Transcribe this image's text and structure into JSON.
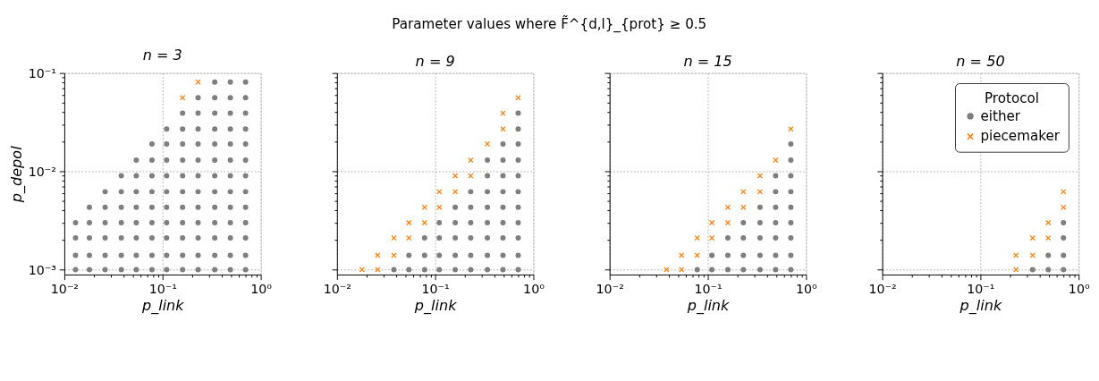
{
  "chart_data": [
    {
      "type": "scatter",
      "title": "n = 3",
      "annotations": [
        "Parameter values where F̃^{d,l}_{prot} ≥ 0.5"
      ],
      "xlabel": "p_link",
      "ylabel": "p_depol",
      "xlim": [
        0.01,
        1
      ],
      "ylim": [
        0.00089,
        0.1
      ],
      "grid": true,
      "log": "xy",
      "xticks": [
        {
          "value": 0.01,
          "label": "10⁻²"
        },
        {
          "value": 0.02,
          "label": null
        },
        {
          "value": 0.03,
          "label": null
        },
        {
          "value": 0.04,
          "label": null
        },
        {
          "value": 0.05,
          "label": null
        },
        {
          "value": 0.06,
          "label": null
        },
        {
          "value": 0.07,
          "label": null
        },
        {
          "value": 0.08,
          "label": null
        },
        {
          "value": 0.09,
          "label": null
        },
        {
          "value": 0.1,
          "label": "10⁻¹"
        },
        {
          "value": 0.2,
          "label": null
        },
        {
          "value": 0.3,
          "label": null
        },
        {
          "value": 0.4,
          "label": null
        },
        {
          "value": 0.5,
          "label": null
        },
        {
          "value": 0.6,
          "label": null
        },
        {
          "value": 0.7,
          "label": null
        },
        {
          "value": 0.8,
          "label": null
        },
        {
          "value": 0.9,
          "label": null
        },
        {
          "value": 1,
          "label": "10⁰"
        }
      ],
      "yticks": [
        {
          "value": 0.001,
          "label": "10⁻³"
        },
        {
          "value": 0.002,
          "label": null
        },
        {
          "value": 0.003,
          "label": null
        },
        {
          "value": 0.004,
          "label": null
        },
        {
          "value": 0.005,
          "label": null
        },
        {
          "value": 0.006,
          "label": null
        },
        {
          "value": 0.007,
          "label": null
        },
        {
          "value": 0.008,
          "label": null
        },
        {
          "value": 0.009,
          "label": null
        },
        {
          "value": 0.01,
          "label": "10⁻²"
        },
        {
          "value": 0.02,
          "label": null
        },
        {
          "value": 0.03,
          "label": null
        },
        {
          "value": 0.04,
          "label": null
        },
        {
          "value": 0.05,
          "label": null
        },
        {
          "value": 0.06,
          "label": null
        },
        {
          "value": 0.07,
          "label": null
        },
        {
          "value": 0.08,
          "label": null
        },
        {
          "value": 0.09,
          "label": null
        },
        {
          "value": 0.1,
          "label": "10⁻¹"
        }
      ],
      "series": [
        {
          "color": "#7f7f7f",
          "marker": "circle",
          "x": [
            0.013,
            0.018,
            0.026,
            0.038,
            0.054,
            0.078,
            0.11,
            0.16,
            0.23,
            0.34,
            0.49,
            0.7,
            0.013,
            0.018,
            0.026,
            0.038,
            0.054,
            0.078,
            0.11,
            0.16,
            0.23,
            0.34,
            0.49,
            0.7,
            0.013,
            0.018,
            0.026,
            0.038,
            0.054,
            0.078,
            0.11,
            0.16,
            0.23,
            0.34,
            0.49,
            0.7,
            0.013,
            0.018,
            0.026,
            0.038,
            0.054,
            0.078,
            0.11,
            0.16,
            0.23,
            0.34,
            0.49,
            0.7,
            0.018,
            0.026,
            0.038,
            0.054,
            0.078,
            0.11,
            0.16,
            0.23,
            0.34,
            0.49,
            0.7,
            0.026,
            0.038,
            0.054,
            0.078,
            0.11,
            0.16,
            0.23,
            0.34,
            0.49,
            0.7,
            0.038,
            0.054,
            0.078,
            0.11,
            0.16,
            0.23,
            0.34,
            0.49,
            0.7,
            0.054,
            0.078,
            0.11,
            0.16,
            0.23,
            0.34,
            0.49,
            0.7,
            0.078,
            0.11,
            0.16,
            0.23,
            0.34,
            0.49,
            0.7,
            0.11,
            0.16,
            0.23,
            0.34,
            0.49,
            0.7,
            0.16,
            0.23,
            0.34,
            0.49,
            0.7,
            0.23,
            0.34,
            0.49,
            0.7,
            0.34,
            0.49,
            0.7
          ],
          "values": [
            0.001,
            0.001,
            0.001,
            0.001,
            0.001,
            0.001,
            0.001,
            0.001,
            0.001,
            0.001,
            0.001,
            0.001,
            0.0014,
            0.0014,
            0.0014,
            0.0014,
            0.0014,
            0.0014,
            0.0014,
            0.0014,
            0.0014,
            0.0014,
            0.0014,
            0.0014,
            0.0021,
            0.0021,
            0.0021,
            0.0021,
            0.0021,
            0.0021,
            0.0021,
            0.0021,
            0.0021,
            0.0021,
            0.0021,
            0.0021,
            0.003,
            0.003,
            0.003,
            0.003,
            0.003,
            0.003,
            0.003,
            0.003,
            0.003,
            0.003,
            0.003,
            0.003,
            0.0043,
            0.0043,
            0.0043,
            0.0043,
            0.0043,
            0.0043,
            0.0043,
            0.0043,
            0.0043,
            0.0043,
            0.0043,
            0.0062,
            0.0062,
            0.0062,
            0.0062,
            0.0062,
            0.0062,
            0.0062,
            0.0062,
            0.0062,
            0.0062,
            0.009,
            0.009,
            0.009,
            0.009,
            0.009,
            0.009,
            0.009,
            0.009,
            0.009,
            0.013,
            0.013,
            0.013,
            0.013,
            0.013,
            0.013,
            0.013,
            0.013,
            0.019,
            0.019,
            0.019,
            0.019,
            0.019,
            0.019,
            0.019,
            0.027,
            0.027,
            0.027,
            0.027,
            0.027,
            0.027,
            0.039,
            0.039,
            0.039,
            0.039,
            0.039,
            0.056,
            0.056,
            0.056,
            0.056,
            0.081,
            0.081,
            0.081
          ]
        },
        {
          "color": "#ff7f0e",
          "marker": "cross",
          "x": [
            0.16,
            0.23
          ],
          "values": [
            0.056,
            0.081
          ]
        }
      ]
    },
    {
      "type": "scatter",
      "title": "n = 9",
      "xlabel": "p_link",
      "xlim": [
        0.01,
        1
      ],
      "ylim": [
        0.00089,
        0.1
      ],
      "grid": true,
      "log": "xy",
      "tick_labels": "x",
      "xticks": [
        {
          "value": 0.01,
          "label": "10⁻²"
        },
        {
          "value": 0.02,
          "label": null
        },
        {
          "value": 0.03,
          "label": null
        },
        {
          "value": 0.04,
          "label": null
        },
        {
          "value": 0.05,
          "label": null
        },
        {
          "value": 0.06,
          "label": null
        },
        {
          "value": 0.07,
          "label": null
        },
        {
          "value": 0.08,
          "label": null
        },
        {
          "value": 0.09,
          "label": null
        },
        {
          "value": 0.1,
          "label": "10⁻¹"
        },
        {
          "value": 0.2,
          "label": null
        },
        {
          "value": 0.3,
          "label": null
        },
        {
          "value": 0.4,
          "label": null
        },
        {
          "value": 0.5,
          "label": null
        },
        {
          "value": 0.6,
          "label": null
        },
        {
          "value": 0.7,
          "label": null
        },
        {
          "value": 0.8,
          "label": null
        },
        {
          "value": 0.9,
          "label": null
        },
        {
          "value": 1,
          "label": "10⁰"
        }
      ],
      "yticks": [
        {
          "value": 0.001,
          "label": null
        },
        {
          "value": 0.002,
          "label": null
        },
        {
          "value": 0.003,
          "label": null
        },
        {
          "value": 0.004,
          "label": null
        },
        {
          "value": 0.005,
          "label": null
        },
        {
          "value": 0.006,
          "label": null
        },
        {
          "value": 0.007,
          "label": null
        },
        {
          "value": 0.008,
          "label": null
        },
        {
          "value": 0.009,
          "label": null
        },
        {
          "value": 0.01,
          "label": null
        },
        {
          "value": 0.02,
          "label": null
        },
        {
          "value": 0.03,
          "label": null
        },
        {
          "value": 0.04,
          "label": null
        },
        {
          "value": 0.05,
          "label": null
        },
        {
          "value": 0.06,
          "label": null
        },
        {
          "value": 0.07,
          "label": null
        },
        {
          "value": 0.08,
          "label": null
        },
        {
          "value": 0.09,
          "label": null
        },
        {
          "value": 0.1,
          "label": null
        }
      ],
      "series": [
        {
          "color": "#7f7f7f",
          "marker": "circle",
          "x": [
            0.038,
            0.054,
            0.078,
            0.11,
            0.16,
            0.23,
            0.34,
            0.49,
            0.7,
            0.054,
            0.078,
            0.11,
            0.16,
            0.23,
            0.34,
            0.49,
            0.7,
            0.078,
            0.11,
            0.16,
            0.23,
            0.34,
            0.49,
            0.7,
            0.11,
            0.16,
            0.23,
            0.34,
            0.49,
            0.7,
            0.16,
            0.23,
            0.34,
            0.49,
            0.7,
            0.23,
            0.34,
            0.49,
            0.7,
            0.34,
            0.49,
            0.7,
            0.34,
            0.49,
            0.7,
            0.49,
            0.7,
            0.7,
            0.7
          ],
          "values": [
            0.001,
            0.001,
            0.001,
            0.001,
            0.001,
            0.001,
            0.001,
            0.001,
            0.001,
            0.0014,
            0.0014,
            0.0014,
            0.0014,
            0.0014,
            0.0014,
            0.0014,
            0.0014,
            0.0021,
            0.0021,
            0.0021,
            0.0021,
            0.0021,
            0.0021,
            0.0021,
            0.003,
            0.003,
            0.003,
            0.003,
            0.003,
            0.003,
            0.0043,
            0.0043,
            0.0043,
            0.0043,
            0.0043,
            0.0062,
            0.0062,
            0.0062,
            0.0062,
            0.009,
            0.009,
            0.009,
            0.013,
            0.013,
            0.013,
            0.019,
            0.019,
            0.027,
            0.039
          ]
        },
        {
          "color": "#ff7f0e",
          "marker": "cross",
          "x": [
            0.018,
            0.026,
            0.026,
            0.038,
            0.038,
            0.054,
            0.054,
            0.078,
            0.078,
            0.11,
            0.11,
            0.16,
            0.16,
            0.23,
            0.23,
            0.34,
            0.49,
            0.49,
            0.7
          ],
          "values": [
            0.001,
            0.001,
            0.0014,
            0.0014,
            0.0021,
            0.0021,
            0.003,
            0.003,
            0.0043,
            0.0043,
            0.0062,
            0.0062,
            0.009,
            0.009,
            0.013,
            0.019,
            0.027,
            0.039,
            0.056
          ]
        }
      ]
    },
    {
      "type": "scatter",
      "title": "n = 15",
      "xlabel": "p_link",
      "xlim": [
        0.01,
        1
      ],
      "ylim": [
        0.00089,
        0.1
      ],
      "grid": true,
      "log": "xy",
      "tick_labels": "x",
      "xticks": [
        {
          "value": 0.01,
          "label": "10⁻²"
        },
        {
          "value": 0.02,
          "label": null
        },
        {
          "value": 0.03,
          "label": null
        },
        {
          "value": 0.04,
          "label": null
        },
        {
          "value": 0.05,
          "label": null
        },
        {
          "value": 0.06,
          "label": null
        },
        {
          "value": 0.07,
          "label": null
        },
        {
          "value": 0.08,
          "label": null
        },
        {
          "value": 0.09,
          "label": null
        },
        {
          "value": 0.1,
          "label": "10⁻¹"
        },
        {
          "value": 0.2,
          "label": null
        },
        {
          "value": 0.3,
          "label": null
        },
        {
          "value": 0.4,
          "label": null
        },
        {
          "value": 0.5,
          "label": null
        },
        {
          "value": 0.6,
          "label": null
        },
        {
          "value": 0.7,
          "label": null
        },
        {
          "value": 0.8,
          "label": null
        },
        {
          "value": 0.9,
          "label": null
        },
        {
          "value": 1,
          "label": "10⁰"
        }
      ],
      "yticks": [
        {
          "value": 0.001,
          "label": null
        },
        {
          "value": 0.002,
          "label": null
        },
        {
          "value": 0.003,
          "label": null
        },
        {
          "value": 0.004,
          "label": null
        },
        {
          "value": 0.005,
          "label": null
        },
        {
          "value": 0.006,
          "label": null
        },
        {
          "value": 0.007,
          "label": null
        },
        {
          "value": 0.008,
          "label": null
        },
        {
          "value": 0.009,
          "label": null
        },
        {
          "value": 0.01,
          "label": null
        },
        {
          "value": 0.02,
          "label": null
        },
        {
          "value": 0.03,
          "label": null
        },
        {
          "value": 0.04,
          "label": null
        },
        {
          "value": 0.05,
          "label": null
        },
        {
          "value": 0.06,
          "label": null
        },
        {
          "value": 0.07,
          "label": null
        },
        {
          "value": 0.08,
          "label": null
        },
        {
          "value": 0.09,
          "label": null
        },
        {
          "value": 0.1,
          "label": null
        }
      ],
      "series": [
        {
          "color": "#7f7f7f",
          "marker": "circle",
          "x": [
            0.078,
            0.11,
            0.16,
            0.23,
            0.34,
            0.49,
            0.7,
            0.11,
            0.16,
            0.23,
            0.34,
            0.49,
            0.7,
            0.16,
            0.23,
            0.34,
            0.49,
            0.7,
            0.23,
            0.34,
            0.49,
            0.7,
            0.34,
            0.49,
            0.7,
            0.49,
            0.7,
            0.49,
            0.7,
            0.7,
            0.7
          ],
          "values": [
            0.001,
            0.001,
            0.001,
            0.001,
            0.001,
            0.001,
            0.001,
            0.0014,
            0.0014,
            0.0014,
            0.0014,
            0.0014,
            0.0014,
            0.0021,
            0.0021,
            0.0021,
            0.0021,
            0.0021,
            0.003,
            0.003,
            0.003,
            0.003,
            0.0043,
            0.0043,
            0.0043,
            0.0062,
            0.0062,
            0.009,
            0.009,
            0.013,
            0.019
          ]
        },
        {
          "color": "#ff7f0e",
          "marker": "cross",
          "x": [
            0.038,
            0.054,
            0.054,
            0.078,
            0.078,
            0.11,
            0.11,
            0.16,
            0.16,
            0.23,
            0.23,
            0.34,
            0.34,
            0.49,
            0.7
          ],
          "values": [
            0.001,
            0.001,
            0.0014,
            0.0014,
            0.0021,
            0.0021,
            0.003,
            0.003,
            0.0043,
            0.0043,
            0.0062,
            0.0062,
            0.009,
            0.013,
            0.027
          ]
        }
      ]
    },
    {
      "type": "scatter",
      "title": "n = 50",
      "xlabel": "p_link",
      "xlim": [
        0.01,
        1
      ],
      "ylim": [
        0.00089,
        0.1
      ],
      "grid": true,
      "log": "xy",
      "tick_labels": "x",
      "legend": "top right",
      "legend_title": "Protocol",
      "xticks": [
        {
          "value": 0.01,
          "label": "10⁻²"
        },
        {
          "value": 0.02,
          "label": null
        },
        {
          "value": 0.03,
          "label": null
        },
        {
          "value": 0.04,
          "label": null
        },
        {
          "value": 0.05,
          "label": null
        },
        {
          "value": 0.06,
          "label": null
        },
        {
          "value": 0.07,
          "label": null
        },
        {
          "value": 0.08,
          "label": null
        },
        {
          "value": 0.09,
          "label": null
        },
        {
          "value": 0.1,
          "label": "10⁻¹"
        },
        {
          "value": 0.2,
          "label": null
        },
        {
          "value": 0.3,
          "label": null
        },
        {
          "value": 0.4,
          "label": null
        },
        {
          "value": 0.5,
          "label": null
        },
        {
          "value": 0.6,
          "label": null
        },
        {
          "value": 0.7,
          "label": null
        },
        {
          "value": 0.8,
          "label": null
        },
        {
          "value": 0.9,
          "label": null
        },
        {
          "value": 1,
          "label": "10⁰"
        }
      ],
      "yticks": [
        {
          "value": 0.001,
          "label": null
        },
        {
          "value": 0.002,
          "label": null
        },
        {
          "value": 0.003,
          "label": null
        },
        {
          "value": 0.004,
          "label": null
        },
        {
          "value": 0.005,
          "label": null
        },
        {
          "value": 0.006,
          "label": null
        },
        {
          "value": 0.007,
          "label": null
        },
        {
          "value": 0.008,
          "label": null
        },
        {
          "value": 0.009,
          "label": null
        },
        {
          "value": 0.01,
          "label": null
        },
        {
          "value": 0.02,
          "label": null
        },
        {
          "value": 0.03,
          "label": null
        },
        {
          "value": 0.04,
          "label": null
        },
        {
          "value": 0.05,
          "label": null
        },
        {
          "value": 0.06,
          "label": null
        },
        {
          "value": 0.07,
          "label": null
        },
        {
          "value": 0.08,
          "label": null
        },
        {
          "value": 0.09,
          "label": null
        },
        {
          "value": 0.1,
          "label": null
        }
      ],
      "series": [
        {
          "name": "either",
          "color": "#7f7f7f",
          "marker": "circle",
          "x": [
            0.34,
            0.49,
            0.7,
            0.49,
            0.7,
            0.7,
            0.7
          ],
          "values": [
            0.001,
            0.001,
            0.001,
            0.0014,
            0.0014,
            0.0021,
            0.003
          ]
        },
        {
          "name": "piecemaker",
          "color": "#ff7f0e",
          "marker": "cross",
          "x": [
            0.23,
            0.23,
            0.34,
            0.34,
            0.49,
            0.49,
            0.7,
            0.7
          ],
          "values": [
            0.001,
            0.0014,
            0.0014,
            0.0021,
            0.0021,
            0.003,
            0.0043,
            0.0062
          ]
        }
      ]
    }
  ]
}
